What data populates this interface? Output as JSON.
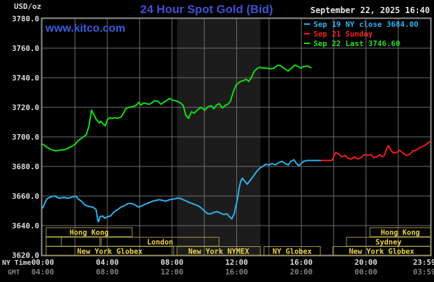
{
  "page": {
    "unit": "USD/oz",
    "title": "24 Hour Spot Gold (Bid)",
    "datetime": "September 22, 2025 16:40",
    "watermark": "www.kitco.com",
    "ny_time_label": "NY Time",
    "gmt_label": "GMT"
  },
  "colors": {
    "background": "#000000",
    "grid": "#6f6f6f",
    "border": "#909090",
    "band": "#1c1c1c",
    "title_blue": "#4150d2",
    "watermark_blue": "#3c5ce0",
    "text_light": "#dcdcdc",
    "text_dim": "#818181",
    "session_border": "#a69a45",
    "session_text": "#edd44c",
    "line_blue": "#2eb3ef",
    "line_red": "#f21d1d",
    "line_green": "#11e011"
  },
  "legend": [
    {
      "label": "Sep 19 NY close 3684.00",
      "color": "#2eb3ef"
    },
    {
      "label": "Sep 21 Sunday",
      "color": "#f22222"
    },
    {
      "label": "Sep 22 Last 3746.60",
      "color": "#22e022"
    }
  ],
  "chart_data": {
    "type": "line",
    "title": "24 Hour Spot Gold (Bid)",
    "ylabel": "USD/oz",
    "ylim": [
      3620,
      3780
    ],
    "y_tick_step": 20,
    "y_tick_labels": [
      "3780.0",
      "3760.0",
      "3740.0",
      "3720.0",
      "3700.0",
      "3680.0",
      "3660.0",
      "3640.0",
      "3620.0"
    ],
    "x_hours_range": [
      0,
      24
    ],
    "x_gridline_every_h": 2,
    "x_ticks": [
      {
        "h": 0,
        "ny": "00:00",
        "gmt": "04:00"
      },
      {
        "h": 4,
        "ny": "04:00",
        "gmt": "08:00"
      },
      {
        "h": 8,
        "ny": "08:00",
        "gmt": "12:00"
      },
      {
        "h": 12,
        "ny": "12:00",
        "gmt": "16:00"
      },
      {
        "h": 16,
        "ny": "16:00",
        "gmt": "20:00"
      },
      {
        "h": 20,
        "ny": "20:00",
        "gmt": "00:00"
      },
      {
        "h": 23.983,
        "ny": "23:59",
        "gmt": "03:59"
      }
    ],
    "nymex_band_h": [
      8.31,
      13.47
    ],
    "series": [
      {
        "name": "Sep 19 NY close 3684.00",
        "color": "#2eb3ef",
        "points": [
          [
            0,
            3652
          ],
          [
            0.25,
            3658
          ],
          [
            0.5,
            3659.5
          ],
          [
            0.75,
            3660
          ],
          [
            1,
            3658.5
          ],
          [
            1.3,
            3659
          ],
          [
            1.6,
            3658.5
          ],
          [
            1.9,
            3659.5
          ],
          [
            2.05,
            3660
          ],
          [
            2.2,
            3658
          ],
          [
            2.4,
            3656.5
          ],
          [
            2.6,
            3654
          ],
          [
            2.85,
            3653
          ],
          [
            3.1,
            3652.5
          ],
          [
            3.3,
            3651
          ],
          [
            3.4,
            3644
          ],
          [
            3.45,
            3642.5
          ],
          [
            3.55,
            3646
          ],
          [
            3.7,
            3646.5
          ],
          [
            3.85,
            3645
          ],
          [
            4,
            3646
          ],
          [
            4.2,
            3646.5
          ],
          [
            4.35,
            3648.5
          ],
          [
            4.5,
            3650
          ],
          [
            4.65,
            3651
          ],
          [
            4.85,
            3652.5
          ],
          [
            5.05,
            3653.5
          ],
          [
            5.3,
            3655
          ],
          [
            5.5,
            3655
          ],
          [
            5.7,
            3654
          ],
          [
            5.95,
            3652.5
          ],
          [
            6.15,
            3653.5
          ],
          [
            6.35,
            3654.5
          ],
          [
            6.6,
            3655.5
          ],
          [
            6.8,
            3656.5
          ],
          [
            7,
            3657
          ],
          [
            7.2,
            3657.5
          ],
          [
            7.45,
            3657
          ],
          [
            7.6,
            3656.5
          ],
          [
            7.85,
            3657.5
          ],
          [
            8.1,
            3658
          ],
          [
            8.3,
            3658.5
          ],
          [
            8.5,
            3658.5
          ],
          [
            8.7,
            3657.5
          ],
          [
            8.9,
            3656.5
          ],
          [
            9.1,
            3655.5
          ],
          [
            9.35,
            3654.5
          ],
          [
            9.6,
            3653.5
          ],
          [
            9.8,
            3652
          ],
          [
            10,
            3650
          ],
          [
            10.2,
            3648
          ],
          [
            10.4,
            3648
          ],
          [
            10.6,
            3649
          ],
          [
            10.8,
            3649.5
          ],
          [
            11,
            3648.5
          ],
          [
            11.2,
            3647.5
          ],
          [
            11.4,
            3648
          ],
          [
            11.55,
            3646
          ],
          [
            11.7,
            3644.5
          ],
          [
            11.85,
            3648
          ],
          [
            11.95,
            3653
          ],
          [
            12.05,
            3658
          ],
          [
            12.15,
            3665
          ],
          [
            12.25,
            3670
          ],
          [
            12.35,
            3672
          ],
          [
            12.5,
            3670
          ],
          [
            12.65,
            3668
          ],
          [
            12.8,
            3670
          ],
          [
            13,
            3673
          ],
          [
            13.2,
            3676
          ],
          [
            13.4,
            3678.5
          ],
          [
            13.6,
            3680
          ],
          [
            13.8,
            3681.5
          ],
          [
            14,
            3681
          ],
          [
            14.2,
            3682
          ],
          [
            14.4,
            3681
          ],
          [
            14.6,
            3682.5
          ],
          [
            14.8,
            3683.5
          ],
          [
            15,
            3682
          ],
          [
            15.2,
            3681
          ],
          [
            15.35,
            3683.5
          ],
          [
            15.55,
            3684.5
          ],
          [
            15.7,
            3682
          ],
          [
            15.85,
            3680.5
          ],
          [
            16,
            3682
          ],
          [
            16.15,
            3683.5
          ],
          [
            16.35,
            3684
          ],
          [
            16.6,
            3684
          ],
          [
            17,
            3684
          ],
          [
            17.25,
            3684
          ]
        ]
      },
      {
        "name": "Sep 21 Sunday",
        "color": "#f21d1d",
        "points": [
          [
            17.25,
            3684
          ],
          [
            17.9,
            3684
          ],
          [
            18.02,
            3687
          ],
          [
            18.12,
            3689.5
          ],
          [
            18.3,
            3688.5
          ],
          [
            18.5,
            3686.5
          ],
          [
            18.7,
            3687.5
          ],
          [
            18.9,
            3685.5
          ],
          [
            19.1,
            3685
          ],
          [
            19.3,
            3686.5
          ],
          [
            19.5,
            3685
          ],
          [
            19.7,
            3686
          ],
          [
            19.9,
            3688
          ],
          [
            20.1,
            3687.5
          ],
          [
            20.3,
            3688
          ],
          [
            20.5,
            3686
          ],
          [
            20.7,
            3686.5
          ],
          [
            20.85,
            3688
          ],
          [
            21,
            3686.5
          ],
          [
            21.15,
            3687.5
          ],
          [
            21.3,
            3692.5
          ],
          [
            21.38,
            3694
          ],
          [
            21.55,
            3691
          ],
          [
            21.7,
            3689
          ],
          [
            21.9,
            3689.5
          ],
          [
            22.1,
            3691
          ],
          [
            22.3,
            3689
          ],
          [
            22.5,
            3687.5
          ],
          [
            22.7,
            3688
          ],
          [
            22.9,
            3690.5
          ],
          [
            23.1,
            3691
          ],
          [
            23.3,
            3692.5
          ],
          [
            23.6,
            3694
          ],
          [
            23.8,
            3695.5
          ],
          [
            23.98,
            3697
          ]
        ]
      },
      {
        "name": "Sep 22 Last 3746.60",
        "color": "#11e011",
        "points": [
          [
            0,
            3695
          ],
          [
            0.2,
            3693.5
          ],
          [
            0.5,
            3691.5
          ],
          [
            0.8,
            3690.5
          ],
          [
            1.1,
            3691
          ],
          [
            1.4,
            3691.5
          ],
          [
            1.7,
            3693
          ],
          [
            2,
            3695
          ],
          [
            2.2,
            3697.5
          ],
          [
            2.45,
            3699.5
          ],
          [
            2.7,
            3701.5
          ],
          [
            2.85,
            3707
          ],
          [
            2.95,
            3713
          ],
          [
            3.02,
            3718
          ],
          [
            3.15,
            3715.5
          ],
          [
            3.3,
            3712
          ],
          [
            3.5,
            3709.5
          ],
          [
            3.6,
            3710.5
          ],
          [
            3.75,
            3708.5
          ],
          [
            3.87,
            3707.5
          ],
          [
            4,
            3711.5
          ],
          [
            4.15,
            3713
          ],
          [
            4.3,
            3712.5
          ],
          [
            4.5,
            3713
          ],
          [
            4.65,
            3712.5
          ],
          [
            4.85,
            3713.5
          ],
          [
            5,
            3716
          ],
          [
            5.12,
            3719
          ],
          [
            5.35,
            3720
          ],
          [
            5.6,
            3720.5
          ],
          [
            5.8,
            3721.5
          ],
          [
            5.95,
            3723.5
          ],
          [
            6.07,
            3721.5
          ],
          [
            6.25,
            3723
          ],
          [
            6.4,
            3722.5
          ],
          [
            6.6,
            3722
          ],
          [
            6.75,
            3723
          ],
          [
            6.92,
            3724.5
          ],
          [
            7.15,
            3724
          ],
          [
            7.32,
            3722
          ],
          [
            7.5,
            3723.5
          ],
          [
            7.66,
            3724.5
          ],
          [
            7.85,
            3726
          ],
          [
            8,
            3725
          ],
          [
            8.17,
            3724.5
          ],
          [
            8.35,
            3724
          ],
          [
            8.52,
            3723
          ],
          [
            8.7,
            3721
          ],
          [
            8.86,
            3714.5
          ],
          [
            9.03,
            3712.5
          ],
          [
            9.2,
            3717
          ],
          [
            9.38,
            3716
          ],
          [
            9.6,
            3718.5
          ],
          [
            9.8,
            3720
          ],
          [
            10.02,
            3718
          ],
          [
            10.24,
            3720.5
          ],
          [
            10.45,
            3721
          ],
          [
            10.58,
            3719
          ],
          [
            10.75,
            3721.5
          ],
          [
            10.92,
            3722.5
          ],
          [
            11.1,
            3719.5
          ],
          [
            11.27,
            3721
          ],
          [
            11.45,
            3722
          ],
          [
            11.61,
            3724
          ],
          [
            11.78,
            3730
          ],
          [
            11.96,
            3735
          ],
          [
            12.17,
            3737
          ],
          [
            12.39,
            3738
          ],
          [
            12.6,
            3739
          ],
          [
            12.75,
            3737.5
          ],
          [
            12.9,
            3740
          ],
          [
            13.1,
            3744.5
          ],
          [
            13.3,
            3746.5
          ],
          [
            13.46,
            3747
          ],
          [
            13.68,
            3746.5
          ],
          [
            13.89,
            3746.5
          ],
          [
            14.11,
            3746
          ],
          [
            14.32,
            3746.5
          ],
          [
            14.55,
            3748.5
          ],
          [
            14.75,
            3748
          ],
          [
            14.97,
            3746
          ],
          [
            15.18,
            3744.5
          ],
          [
            15.4,
            3746.5
          ],
          [
            15.6,
            3748.5
          ],
          [
            15.83,
            3747.5
          ],
          [
            15.96,
            3746.5
          ],
          [
            16.13,
            3747.5
          ],
          [
            16.39,
            3748
          ],
          [
            16.6,
            3746.6
          ]
        ]
      }
    ],
    "sessions": [
      {
        "row": 0,
        "start_h": 0.21,
        "end_h": 5.54,
        "label": "Hong Kong"
      },
      {
        "row": 0,
        "start_h": 20.25,
        "end_h": 24,
        "label": "Hong Kong"
      },
      {
        "row": 1,
        "start_h": 0.21,
        "end_h": 1.15,
        "label": ""
      },
      {
        "row": 1,
        "start_h": 1.15,
        "end_h": 3.54,
        "label": ""
      },
      {
        "row": 1,
        "start_h": 3.62,
        "end_h": 10.91,
        "label": "London"
      },
      {
        "row": 1,
        "start_h": 18.8,
        "end_h": 24,
        "label": "Sydney"
      },
      {
        "row": 2,
        "start_h": 0.21,
        "end_h": 8.1,
        "label": "New York Globex"
      },
      {
        "row": 2,
        "start_h": 8.31,
        "end_h": 13.47,
        "label": "New York NYMEX"
      },
      {
        "row": 2,
        "start_h": 13.69,
        "end_h": 17.18,
        "label": "NY Globex"
      },
      {
        "row": 2,
        "start_h": 17.95,
        "end_h": 24,
        "label": "New York Globex"
      }
    ]
  }
}
